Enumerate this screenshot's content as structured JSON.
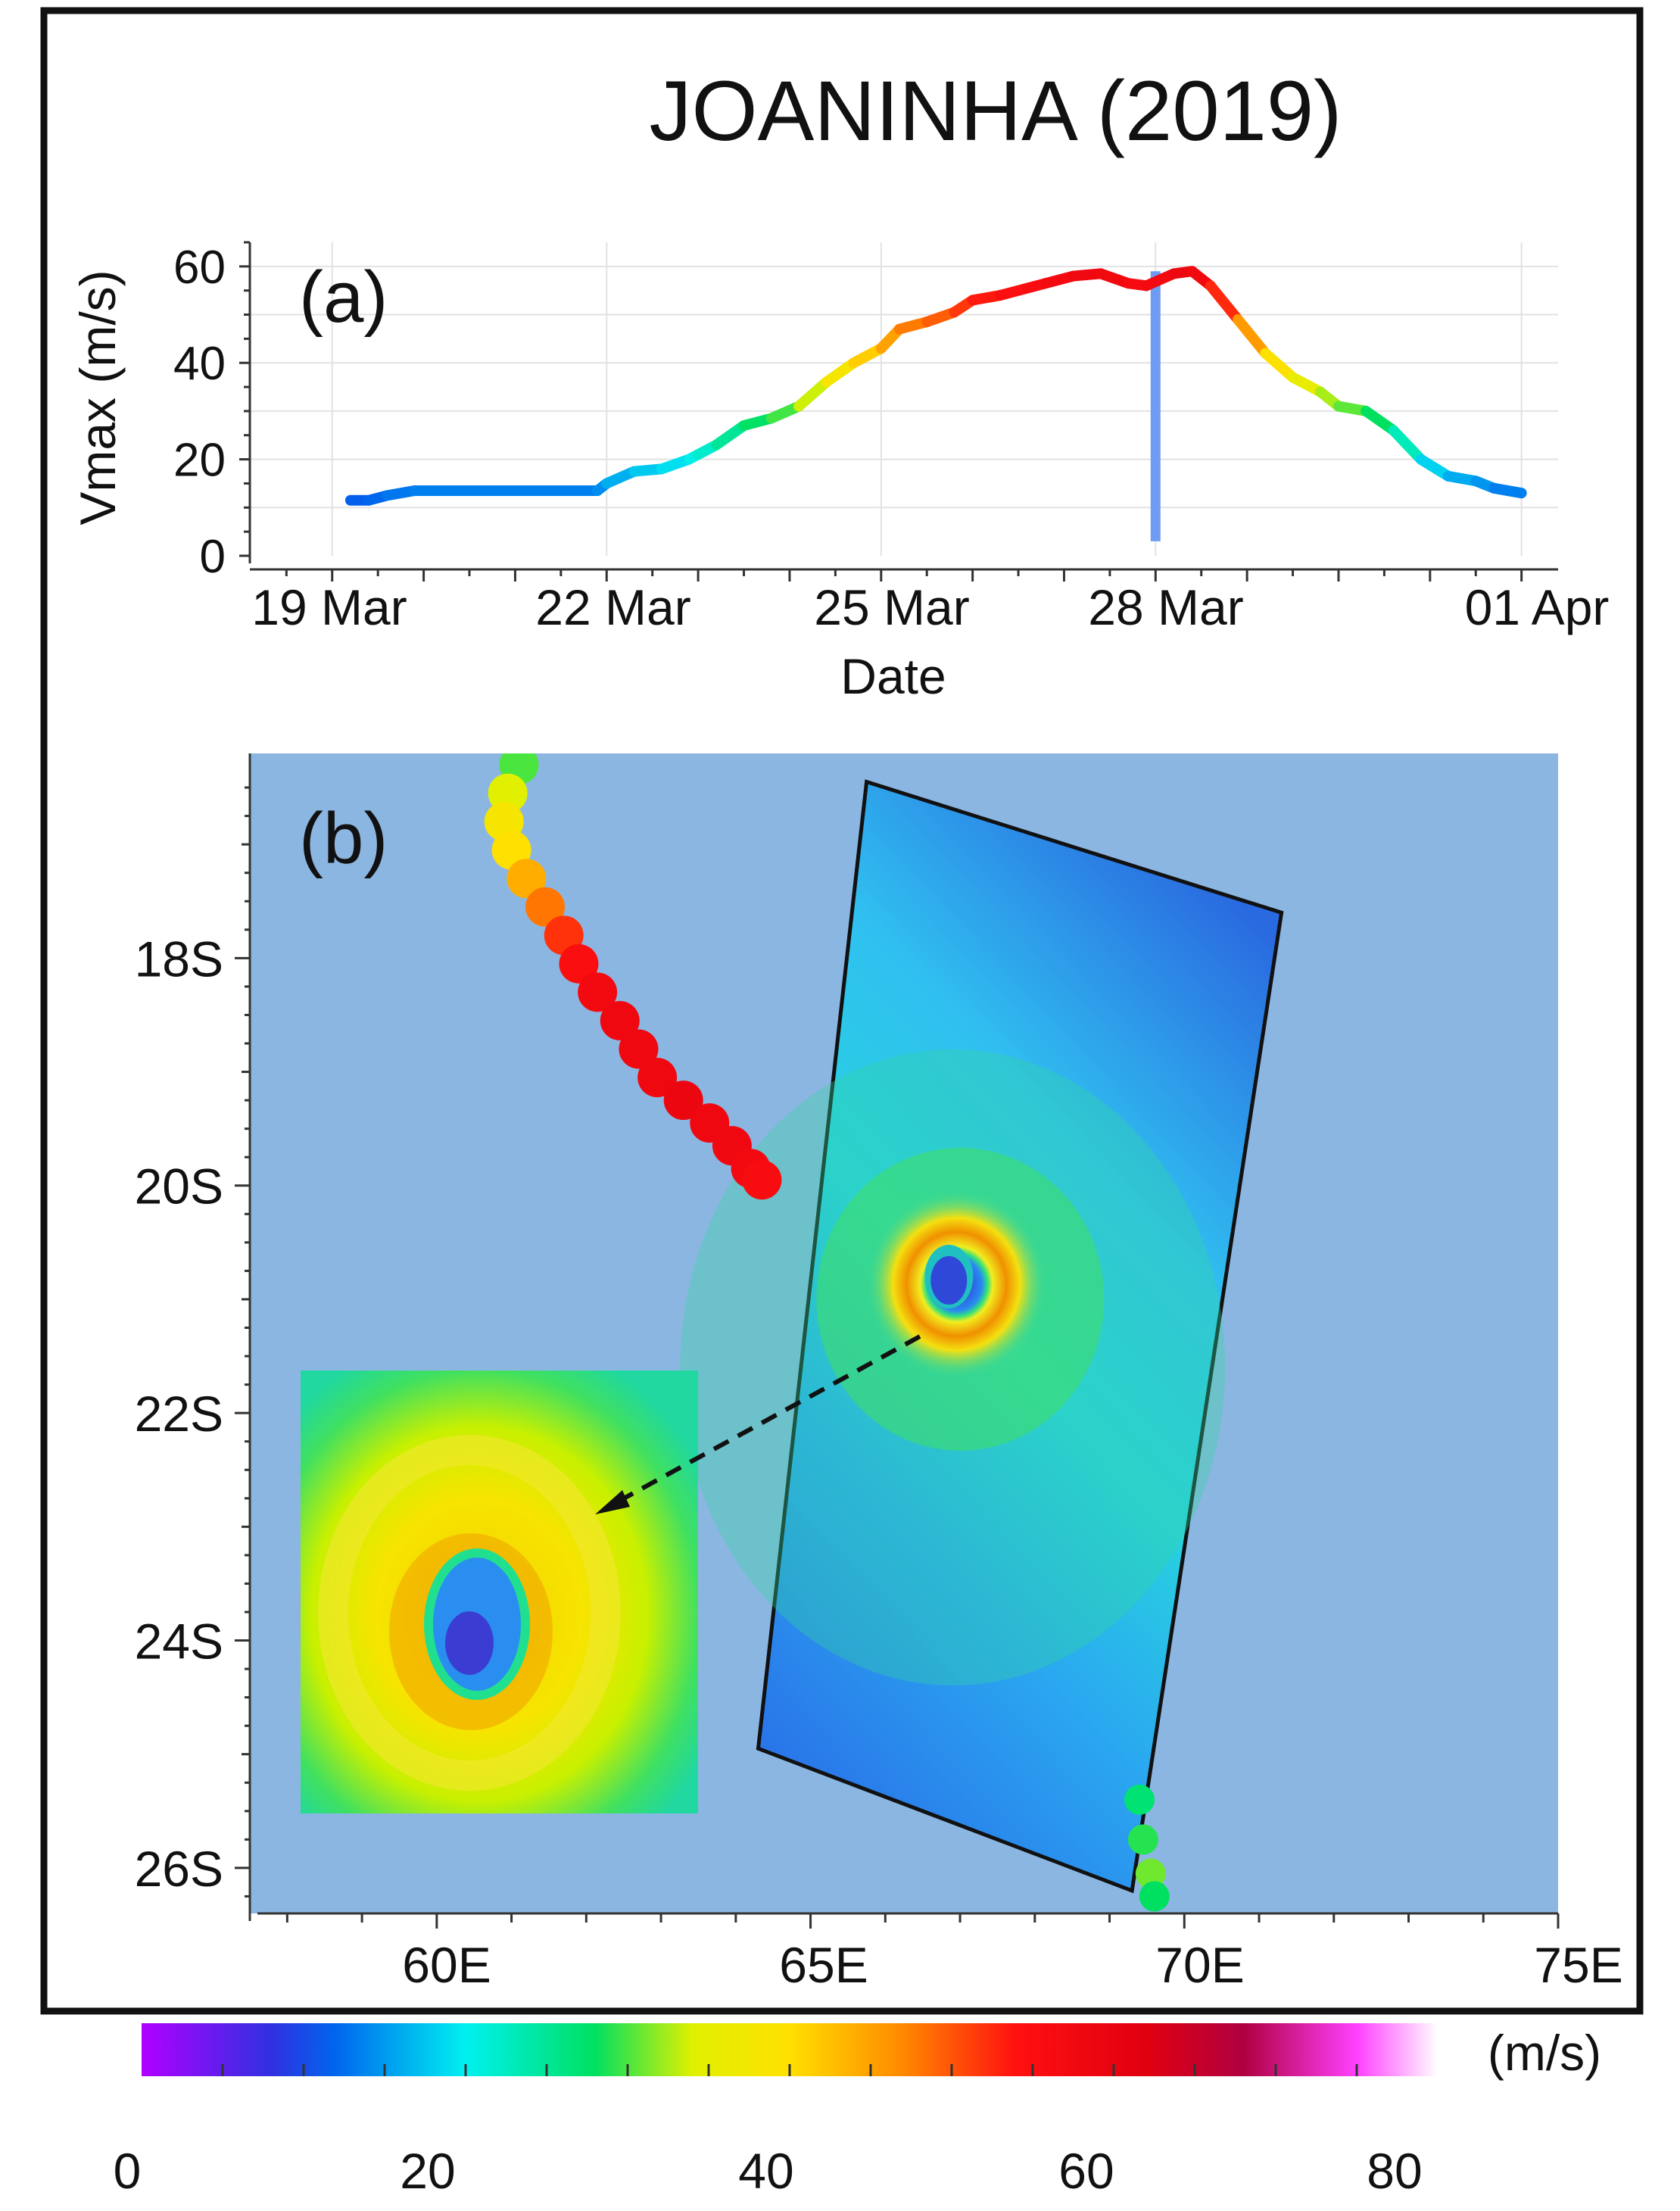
{
  "title": "JOANINHA (2019)",
  "chart_data": [
    {
      "panel": "(a)",
      "type": "line",
      "title": "",
      "xlabel": "Date",
      "ylabel": "Vmax (m/s)",
      "x_ticks": [
        "19 Mar",
        "22 Mar",
        "25 Mar",
        "28 Mar",
        "01 Apr"
      ],
      "x_tick_days": [
        19,
        22,
        25,
        28,
        32
      ],
      "y_ticks": [
        0,
        20,
        40,
        60
      ],
      "ylim": [
        0,
        65
      ],
      "xlim_days": [
        18.1,
        32.4
      ],
      "grid": true,
      "x_days": [
        19.2,
        19.4,
        19.6,
        19.9,
        20.3,
        21.0,
        21.6,
        21.9,
        22.0,
        22.3,
        22.6,
        22.9,
        23.0,
        23.2,
        23.5,
        23.8,
        24.1,
        24.4,
        24.7,
        25.0,
        25.2,
        25.5,
        25.8,
        26.0,
        26.3,
        26.6,
        26.8,
        27.1,
        27.4,
        27.7,
        27.9,
        28.2,
        28.4,
        28.6,
        28.9,
        29.2,
        29.5,
        29.8,
        30.0,
        30.3,
        30.6,
        30.9,
        31.2,
        31.5,
        31.7,
        32.0
      ],
      "vmax_ms": [
        11.5,
        11.5,
        12.5,
        13.5,
        13.5,
        13.5,
        13.5,
        13.5,
        15,
        17.5,
        18,
        20,
        21,
        23,
        27,
        28.5,
        31,
        36,
        40,
        43,
        47,
        48.5,
        50.5,
        53,
        54,
        55.5,
        56.5,
        58,
        58.5,
        56.5,
        56,
        58.5,
        59,
        56,
        49,
        42,
        37,
        34,
        31,
        30,
        26,
        20,
        16.5,
        15.5,
        14,
        13
      ],
      "marker": {
        "day": 28,
        "from": 3,
        "to": 59,
        "color": "#6f9cf2"
      },
      "color_scale": "Vmax (m/s) mapped to colorbar"
    },
    {
      "panel": "(b)",
      "type": "map",
      "x_ticks": [
        "60E",
        "65E",
        "70E",
        "75E"
      ],
      "x_tick_deg": [
        60,
        65,
        70,
        75
      ],
      "y_ticks": [
        "18S",
        "20S",
        "22S",
        "24S",
        "26S"
      ],
      "y_tick_deg": [
        18,
        20,
        22,
        24,
        26
      ],
      "lon_range": [
        57.5,
        75
      ],
      "lat_range": [
        16.2,
        26.4
      ],
      "track_lonlat": [
        [
          61.1,
          16.3
        ],
        [
          60.95,
          16.55
        ],
        [
          60.9,
          16.8
        ],
        [
          61.0,
          17.05
        ],
        [
          61.2,
          17.3
        ],
        [
          61.45,
          17.55
        ],
        [
          61.7,
          17.8
        ],
        [
          61.9,
          18.05
        ],
        [
          62.15,
          18.3
        ],
        [
          62.45,
          18.55
        ],
        [
          62.7,
          18.8
        ],
        [
          62.95,
          19.05
        ],
        [
          63.3,
          19.25
        ],
        [
          63.65,
          19.45
        ],
        [
          63.95,
          19.65
        ],
        [
          64.2,
          19.85
        ],
        [
          64.35,
          19.95
        ]
      ],
      "track_vmax_ms": [
        30,
        34,
        38,
        40,
        44,
        48,
        52,
        55,
        57,
        58,
        58,
        58,
        59,
        58,
        58,
        57,
        56
      ],
      "track2_lonlat": [
        [
          69.4,
          25.4
        ],
        [
          69.45,
          25.75
        ],
        [
          69.55,
          26.05
        ],
        [
          69.6,
          26.25
        ]
      ],
      "track2_vmax_ms": [
        27,
        29,
        31,
        28
      ],
      "sar_corners_lonlat": [
        [
          65.75,
          16.45
        ],
        [
          71.3,
          17.6
        ],
        [
          69.3,
          26.2
        ],
        [
          64.3,
          24.95
        ]
      ],
      "eye_lonlat": [
        66.8,
        20.8
      ],
      "inset": "zoomed SAR wind field around the eye"
    }
  ],
  "colorbar": {
    "unit_label": "(m/s)",
    "tick_labels": [
      "0",
      "20",
      "40",
      "60",
      "80"
    ],
    "tick_values": [
      0,
      20,
      40,
      60,
      80
    ],
    "range": [
      0,
      80
    ],
    "stops": [
      {
        "v": 0,
        "c": "#b000ff"
      },
      {
        "v": 8,
        "c": "#3030e0"
      },
      {
        "v": 12,
        "c": "#0066ee"
      },
      {
        "v": 20,
        "c": "#00f0f0"
      },
      {
        "v": 28,
        "c": "#00e060"
      },
      {
        "v": 34,
        "c": "#e0f000"
      },
      {
        "v": 40,
        "c": "#ffe000"
      },
      {
        "v": 47,
        "c": "#ff8800"
      },
      {
        "v": 54,
        "c": "#ff1010"
      },
      {
        "v": 62,
        "c": "#e00010"
      },
      {
        "v": 68,
        "c": "#b00040"
      },
      {
        "v": 75,
        "c": "#ff40ff"
      },
      {
        "v": 80,
        "c": "#ffffff"
      }
    ]
  },
  "colors": {
    "map_background": "#8cb6e2",
    "marker": "#6f9cf2"
  }
}
